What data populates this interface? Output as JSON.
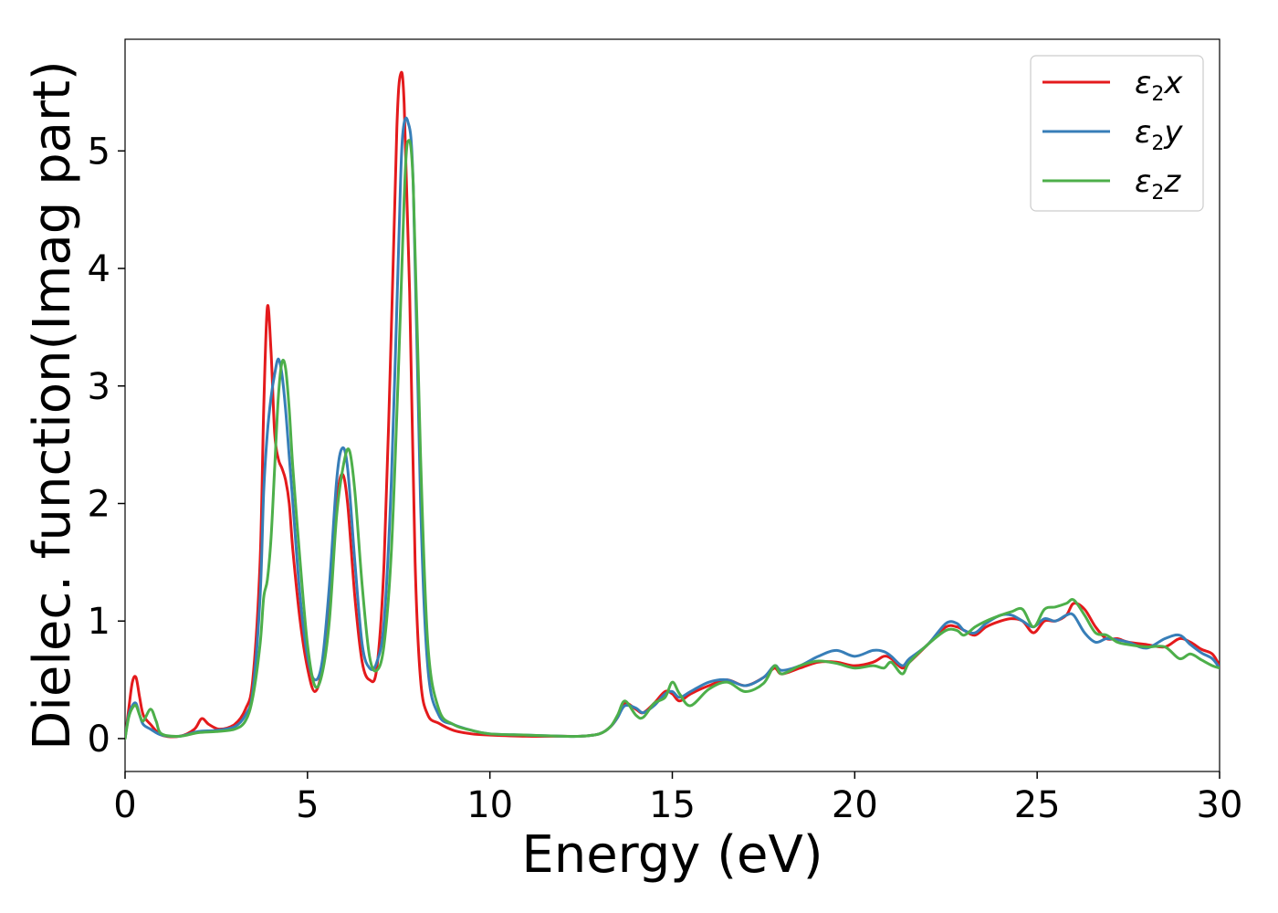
{
  "chart_data": {
    "type": "line",
    "xlabel": "Energy (eV)",
    "ylabel": "Dielec. function(Imag part)",
    "xlim": [
      0,
      30
    ],
    "ylim": [
      -0.28,
      5.95
    ],
    "xticks": [
      0,
      5,
      10,
      15,
      20,
      25,
      30
    ],
    "yticks": [
      0,
      1,
      2,
      3,
      4,
      5
    ],
    "grid": false,
    "legend_position": "top-right",
    "series": [
      {
        "name": "ε₂x",
        "legend": {
          "base": "ε",
          "sub": "2",
          "suffix": "x"
        },
        "color": "#e41a1c",
        "x": [
          0,
          0.1,
          0.2,
          0.3,
          0.4,
          0.5,
          0.7,
          1.0,
          1.5,
          1.9,
          2.1,
          2.3,
          2.6,
          3.0,
          3.3,
          3.5,
          3.7,
          3.8,
          3.9,
          4.0,
          4.1,
          4.2,
          4.3,
          4.4,
          4.5,
          4.6,
          4.8,
          5.0,
          5.2,
          5.4,
          5.6,
          5.8,
          5.95,
          6.1,
          6.3,
          6.5,
          6.7,
          6.9,
          7.1,
          7.3,
          7.45,
          7.55,
          7.65,
          7.8,
          7.95,
          8.1,
          8.3,
          8.6,
          9.0,
          9.5,
          10,
          11,
          12,
          12.5,
          13,
          13.3,
          13.5,
          13.7,
          14,
          14.2,
          14.5,
          14.8,
          15,
          15.2,
          15.5,
          16,
          16.5,
          17,
          17.5,
          17.8,
          18,
          18.5,
          19,
          19.5,
          20,
          20.5,
          20.8,
          21,
          21.3,
          21.5,
          22,
          22.5,
          22.8,
          23,
          23.3,
          23.6,
          24,
          24.3,
          24.6,
          24.9,
          25.2,
          25.5,
          25.8,
          26,
          26.3,
          26.6,
          26.9,
          27.2,
          27.5,
          28,
          28.5,
          28.9,
          29.2,
          29.5,
          29.8,
          30
        ],
        "y": [
          0.0,
          0.25,
          0.48,
          0.52,
          0.35,
          0.2,
          0.12,
          0.03,
          0.02,
          0.08,
          0.17,
          0.12,
          0.08,
          0.12,
          0.25,
          0.5,
          1.5,
          2.8,
          3.67,
          3.3,
          2.6,
          2.38,
          2.3,
          2.2,
          2.0,
          1.6,
          1.0,
          0.6,
          0.4,
          0.6,
          1.2,
          2.0,
          2.25,
          2.0,
          1.2,
          0.65,
          0.5,
          0.6,
          1.5,
          3.5,
          5.2,
          5.65,
          5.4,
          3.8,
          1.5,
          0.5,
          0.2,
          0.13,
          0.07,
          0.04,
          0.03,
          0.02,
          0.02,
          0.02,
          0.04,
          0.1,
          0.18,
          0.3,
          0.25,
          0.22,
          0.3,
          0.4,
          0.38,
          0.32,
          0.38,
          0.45,
          0.5,
          0.45,
          0.52,
          0.6,
          0.55,
          0.6,
          0.65,
          0.65,
          0.62,
          0.65,
          0.7,
          0.68,
          0.6,
          0.65,
          0.8,
          0.95,
          0.95,
          0.92,
          0.88,
          0.95,
          1.0,
          1.02,
          1.0,
          0.9,
          1.0,
          1.0,
          1.05,
          1.15,
          1.1,
          0.95,
          0.85,
          0.85,
          0.82,
          0.8,
          0.78,
          0.85,
          0.82,
          0.76,
          0.72,
          0.62
        ]
      },
      {
        "name": "ε₂y",
        "legend": {
          "base": "ε",
          "sub": "2",
          "suffix": "y"
        },
        "color": "#377eb8",
        "x": [
          0,
          0.1,
          0.2,
          0.3,
          0.4,
          0.5,
          0.7,
          1.0,
          1.5,
          2.0,
          2.5,
          3.0,
          3.3,
          3.5,
          3.7,
          3.8,
          3.9,
          4.0,
          4.1,
          4.2,
          4.3,
          4.4,
          4.5,
          4.6,
          4.8,
          5.0,
          5.2,
          5.4,
          5.6,
          5.8,
          5.95,
          6.1,
          6.3,
          6.5,
          6.7,
          6.9,
          7.1,
          7.3,
          7.5,
          7.6,
          7.75,
          7.9,
          8.1,
          8.3,
          8.6,
          9.0,
          9.5,
          10,
          11,
          12,
          12.5,
          13,
          13.3,
          13.5,
          13.7,
          14,
          14.2,
          14.5,
          14.8,
          15,
          15.2,
          15.5,
          16,
          16.5,
          17,
          17.5,
          17.8,
          18,
          18.5,
          19,
          19.5,
          20,
          20.5,
          20.8,
          21,
          21.3,
          21.5,
          22,
          22.5,
          22.8,
          23,
          23.3,
          23.6,
          24,
          24.3,
          24.6,
          24.9,
          25.2,
          25.5,
          25.8,
          26,
          26.3,
          26.6,
          26.9,
          27.2,
          27.5,
          28,
          28.5,
          28.9,
          29.2,
          29.5,
          29.8,
          30
        ],
        "y": [
          0.0,
          0.2,
          0.28,
          0.3,
          0.2,
          0.12,
          0.08,
          0.03,
          0.02,
          0.06,
          0.07,
          0.1,
          0.2,
          0.4,
          1.2,
          2.1,
          2.6,
          2.9,
          3.1,
          3.23,
          3.1,
          2.8,
          2.4,
          2.0,
          1.2,
          0.7,
          0.5,
          0.65,
          1.3,
          2.2,
          2.47,
          2.3,
          1.5,
          0.8,
          0.6,
          0.65,
          1.0,
          2.2,
          4.2,
          5.1,
          5.25,
          4.7,
          2.0,
          0.6,
          0.2,
          0.12,
          0.07,
          0.04,
          0.03,
          0.02,
          0.02,
          0.04,
          0.1,
          0.18,
          0.28,
          0.26,
          0.22,
          0.28,
          0.38,
          0.4,
          0.35,
          0.4,
          0.48,
          0.5,
          0.45,
          0.52,
          0.62,
          0.58,
          0.62,
          0.7,
          0.75,
          0.7,
          0.75,
          0.74,
          0.7,
          0.62,
          0.68,
          0.8,
          0.98,
          0.98,
          0.92,
          0.9,
          0.98,
          1.05,
          1.05,
          1.0,
          0.95,
          1.02,
          1.0,
          1.05,
          1.05,
          0.9,
          0.82,
          0.85,
          0.84,
          0.82,
          0.77,
          0.85,
          0.88,
          0.8,
          0.73,
          0.68,
          0.6
        ]
      },
      {
        "name": "ε₂z",
        "legend": {
          "base": "ε",
          "sub": "2",
          "suffix": "z"
        },
        "color": "#4daf4a",
        "x": [
          0,
          0.1,
          0.2,
          0.3,
          0.4,
          0.5,
          0.7,
          0.85,
          1.0,
          1.5,
          2.0,
          2.5,
          3.0,
          3.3,
          3.5,
          3.7,
          3.8,
          3.9,
          4.0,
          4.1,
          4.2,
          4.3,
          4.4,
          4.5,
          4.6,
          4.8,
          5.0,
          5.2,
          5.4,
          5.6,
          5.8,
          6.0,
          6.15,
          6.3,
          6.5,
          6.7,
          6.9,
          7.1,
          7.3,
          7.5,
          7.65,
          7.75,
          7.9,
          8.1,
          8.3,
          8.6,
          9.0,
          9.5,
          10,
          11,
          12,
          12.5,
          13,
          13.3,
          13.5,
          13.7,
          14,
          14.2,
          14.5,
          14.8,
          15,
          15.2,
          15.5,
          16,
          16.5,
          17,
          17.5,
          17.8,
          18,
          18.5,
          19,
          19.5,
          20,
          20.5,
          20.8,
          21,
          21.3,
          21.5,
          22,
          22.5,
          22.8,
          23,
          23.3,
          23.6,
          24,
          24.3,
          24.6,
          24.9,
          25.2,
          25.5,
          25.8,
          26,
          26.3,
          26.6,
          26.9,
          27.2,
          27.5,
          28,
          28.5,
          28.9,
          29.2,
          29.5,
          29.8,
          30
        ],
        "y": [
          0.0,
          0.18,
          0.26,
          0.28,
          0.2,
          0.15,
          0.25,
          0.15,
          0.04,
          0.02,
          0.05,
          0.06,
          0.08,
          0.15,
          0.35,
          0.8,
          1.2,
          1.35,
          1.7,
          2.3,
          2.9,
          3.2,
          3.15,
          2.8,
          2.3,
          1.5,
          0.8,
          0.45,
          0.55,
          1.0,
          1.9,
          2.35,
          2.45,
          2.1,
          1.3,
          0.7,
          0.58,
          0.8,
          1.6,
          3.2,
          4.6,
          5.08,
          4.7,
          2.4,
          0.8,
          0.25,
          0.12,
          0.07,
          0.04,
          0.03,
          0.02,
          0.02,
          0.04,
          0.1,
          0.2,
          0.32,
          0.2,
          0.18,
          0.3,
          0.35,
          0.48,
          0.38,
          0.28,
          0.42,
          0.48,
          0.4,
          0.47,
          0.62,
          0.55,
          0.62,
          0.66,
          0.64,
          0.6,
          0.62,
          0.6,
          0.65,
          0.55,
          0.65,
          0.8,
          0.92,
          0.92,
          0.88,
          0.95,
          1.0,
          1.05,
          1.08,
          1.1,
          0.95,
          1.1,
          1.12,
          1.15,
          1.18,
          1.05,
          0.9,
          0.88,
          0.82,
          0.8,
          0.78,
          0.78,
          0.68,
          0.72,
          0.67,
          0.62,
          0.6
        ]
      }
    ]
  }
}
